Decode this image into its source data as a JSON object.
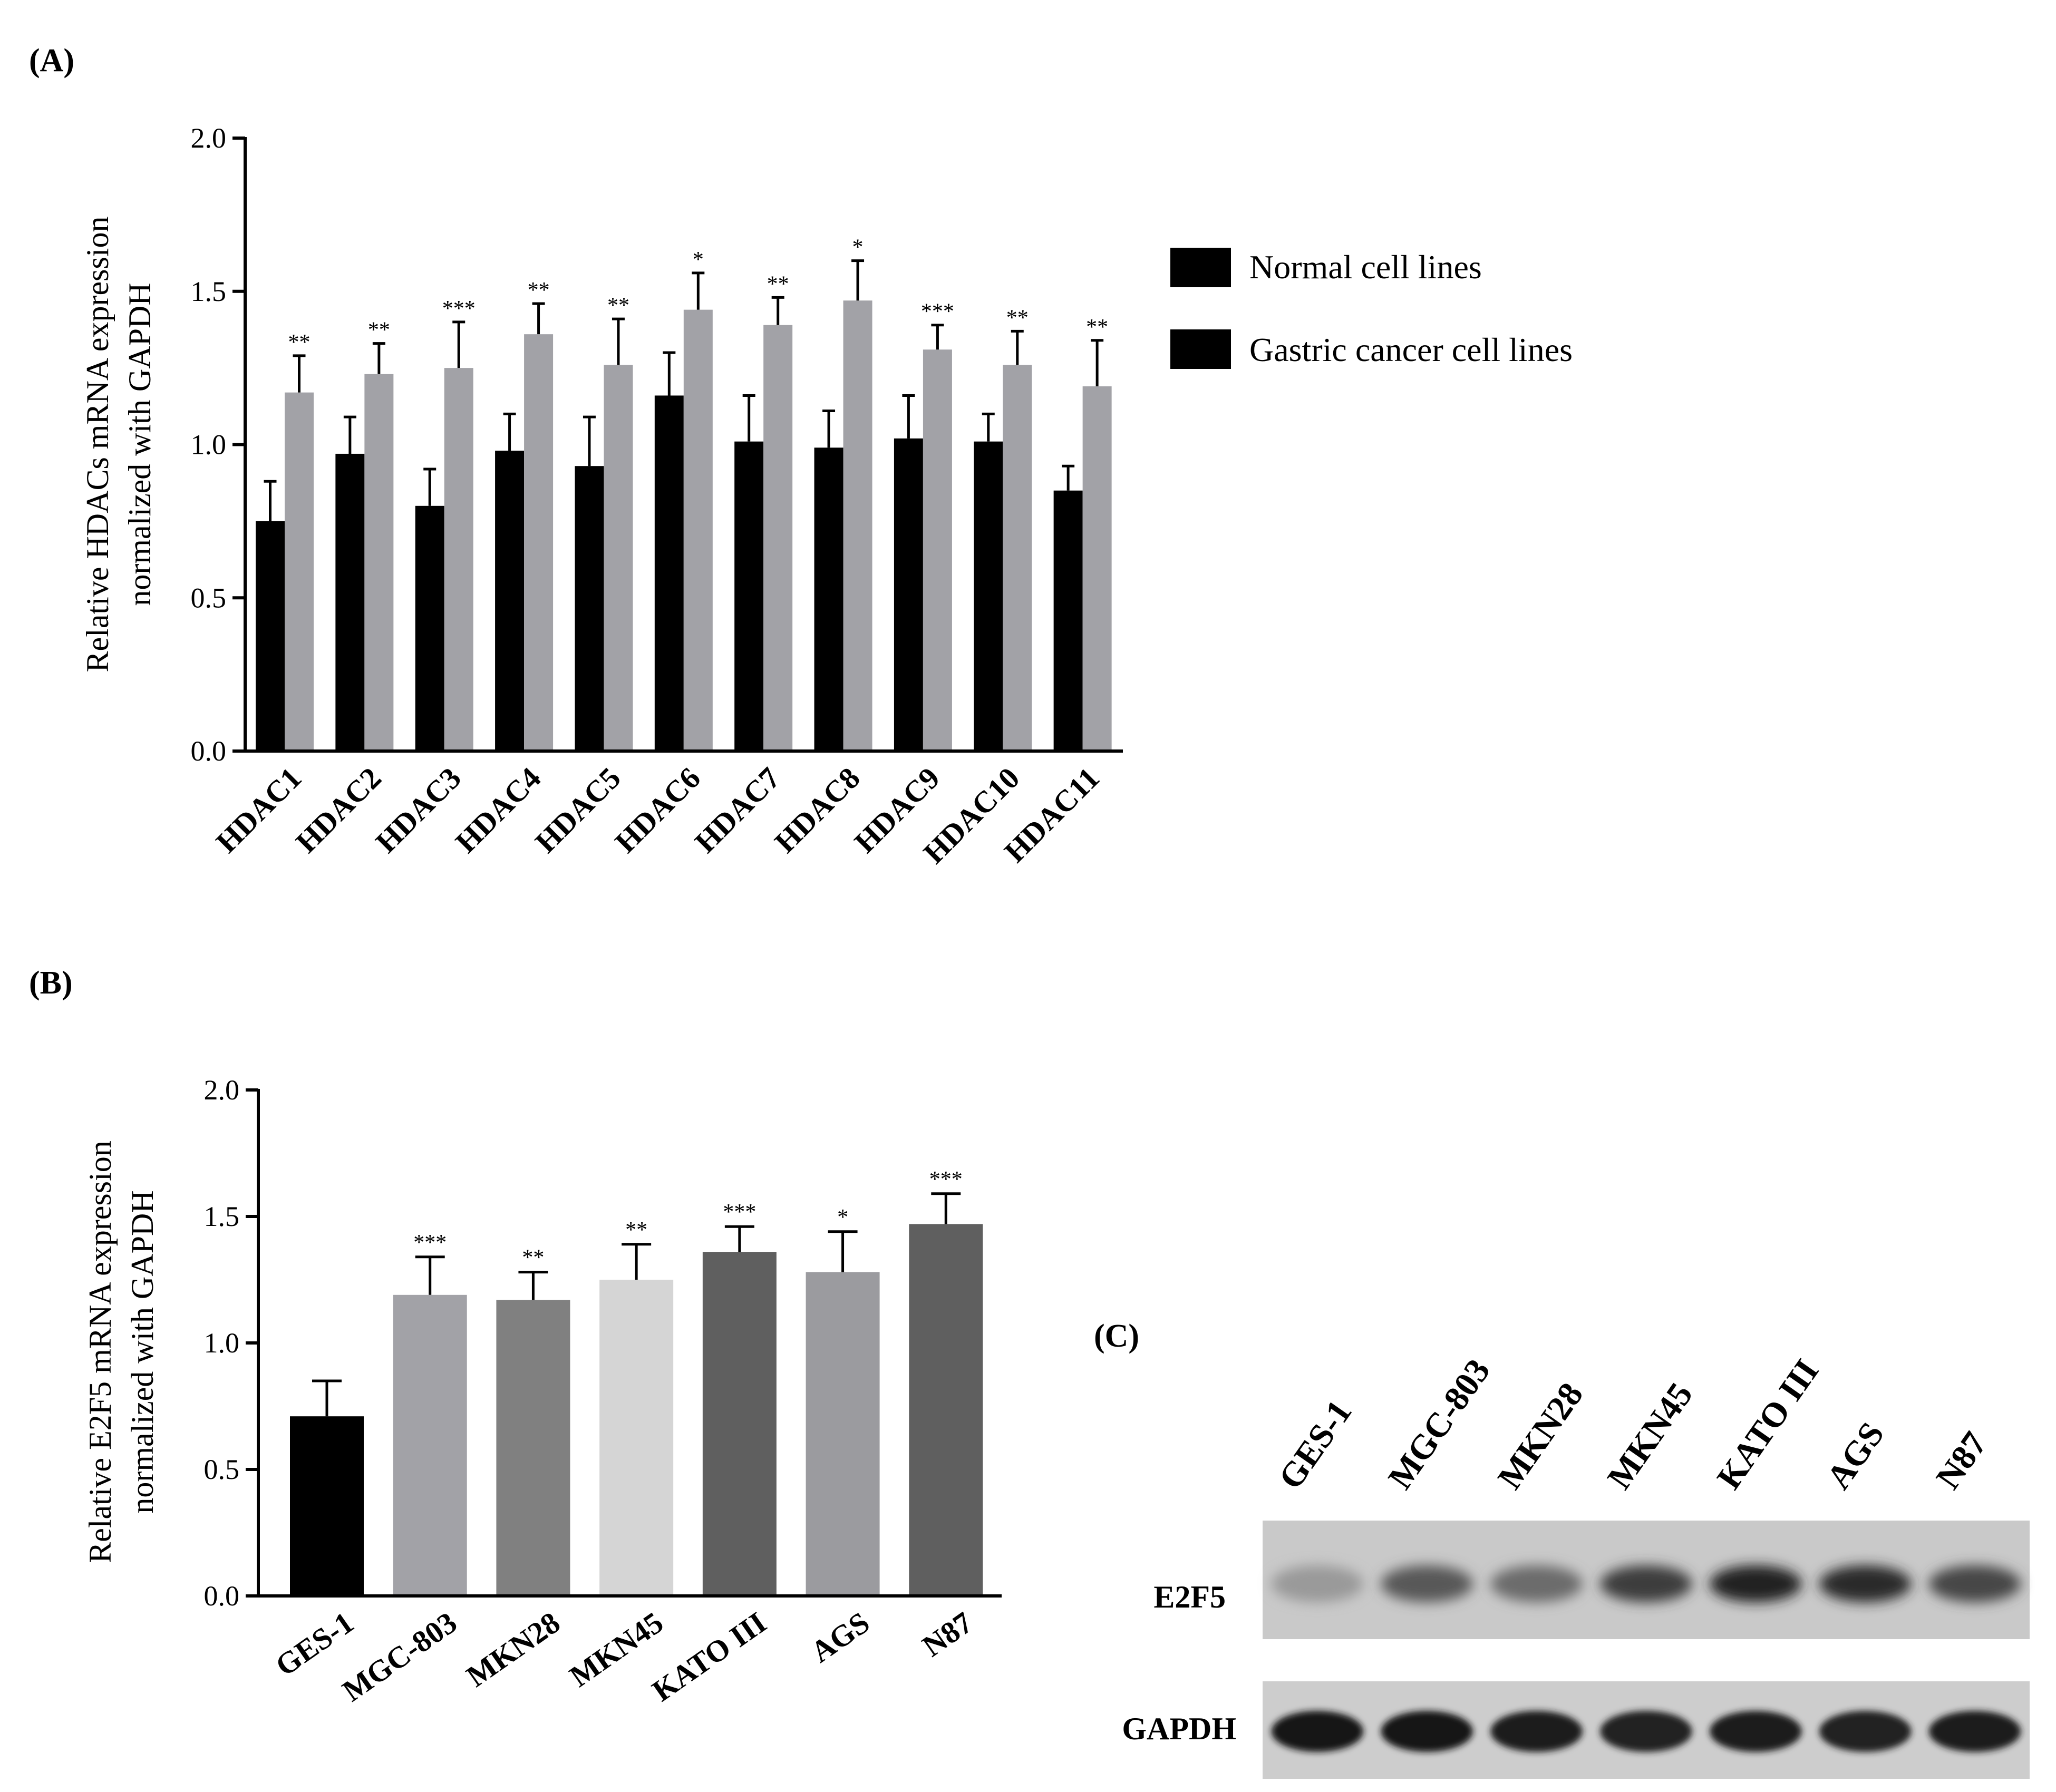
{
  "panels": {
    "a": "(A)",
    "b": "(B)",
    "c": "(C)"
  },
  "colors": {
    "normal": "#000000",
    "cancer": "#a2a2a7",
    "b_bars": [
      "#000000",
      "#a2a2a7",
      "#808080",
      "#d5d5d5",
      "#5f5f5f",
      "#9b9b9f",
      "#5f5f5f"
    ]
  },
  "chart_data": [
    {
      "id": "A",
      "type": "bar",
      "ylabel_line1": "Relative HDACs mRNA expression",
      "ylabel_line2": "normalized with GAPDH",
      "ylim": [
        0,
        2.0
      ],
      "yticks": [
        "0.0",
        "0.5",
        "1.0",
        "1.5",
        "2.0"
      ],
      "ytick_values": [
        0,
        0.5,
        1.0,
        1.5,
        2.0
      ],
      "categories": [
        "HDAC1",
        "HDAC2",
        "HDAC3",
        "HDAC4",
        "HDAC5",
        "HDAC6",
        "HDAC7",
        "HDAC8",
        "HDAC9",
        "HDAC10",
        "HDAC11"
      ],
      "series": [
        {
          "name": "Normal cell lines",
          "values": [
            0.75,
            0.97,
            0.8,
            0.98,
            0.93,
            1.16,
            1.01,
            0.99,
            1.02,
            1.01,
            0.85
          ],
          "errors": [
            0.13,
            0.12,
            0.12,
            0.12,
            0.16,
            0.14,
            0.15,
            0.12,
            0.14,
            0.09,
            0.08
          ]
        },
        {
          "name": "Gastric cancer cell lines",
          "values": [
            1.17,
            1.23,
            1.25,
            1.36,
            1.26,
            1.44,
            1.39,
            1.47,
            1.31,
            1.26,
            1.19
          ],
          "errors": [
            0.12,
            0.1,
            0.15,
            0.1,
            0.15,
            0.12,
            0.09,
            0.13,
            0.08,
            0.11,
            0.15
          ]
        }
      ],
      "significance": [
        "**",
        "**",
        "***",
        "**",
        "**",
        "*",
        "**",
        "*",
        "***",
        "**",
        "**"
      ],
      "legend_position": "right"
    },
    {
      "id": "B",
      "type": "bar",
      "ylabel_line1": "Relative E2F5 mRNA expression",
      "ylabel_line2": "normalized with GAPDH",
      "ylim": [
        0,
        2.0
      ],
      "yticks": [
        "0.0",
        "0.5",
        "1.0",
        "1.5",
        "2.0"
      ],
      "ytick_values": [
        0,
        0.5,
        1.0,
        1.5,
        2.0
      ],
      "categories": [
        "GES-1",
        "MGC-803",
        "MKN28",
        "MKN45",
        "KATO III",
        "AGS",
        "N87"
      ],
      "values": [
        0.71,
        1.19,
        1.17,
        1.25,
        1.36,
        1.28,
        1.47
      ],
      "errors": [
        0.14,
        0.15,
        0.11,
        0.14,
        0.1,
        0.16,
        0.12
      ],
      "significance": [
        "",
        "***",
        "**",
        "**",
        "***",
        "*",
        "***"
      ]
    }
  ],
  "blot": {
    "lanes": [
      "GES-1",
      "MGC-803",
      "MKN28",
      "MKN45",
      "KATO III",
      "AGS",
      "N87"
    ],
    "rows": [
      {
        "label": "E2F5",
        "intensity": [
          0.25,
          0.6,
          0.5,
          0.75,
          0.9,
          0.85,
          0.7
        ]
      },
      {
        "label": "GAPDH",
        "intensity": [
          0.95,
          0.95,
          0.92,
          0.9,
          0.92,
          0.9,
          0.92
        ]
      }
    ]
  }
}
